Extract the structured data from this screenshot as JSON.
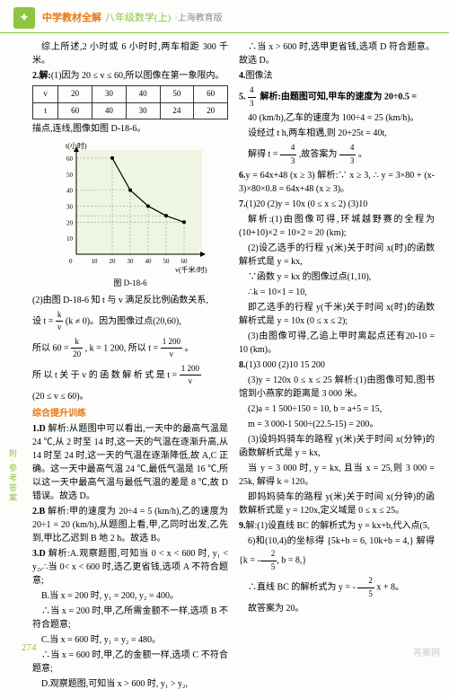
{
  "header": {
    "title": "中学教材全解",
    "subtitle": "八年级数学(上)",
    "edition": "·上海教育版"
  },
  "side_tab": "附·参考答案",
  "page_number": "274",
  "watermark": "答案网",
  "table1": {
    "headers": [
      "v",
      "20",
      "30",
      "40",
      "50",
      "60"
    ],
    "row": [
      "t",
      "60",
      "40",
      "30",
      "24",
      "20"
    ]
  },
  "chart": {
    "type": "line",
    "caption": "图 D-18-6",
    "ylabel": "t(小时)",
    "xlabel": "v(千米/时)",
    "xlim": [
      0,
      70
    ],
    "ylim": [
      0,
      65
    ],
    "xticks": [
      10,
      20,
      30,
      40,
      50,
      60
    ],
    "yticks": [
      10,
      20,
      30,
      40,
      50,
      60
    ],
    "points_x": [
      20,
      30,
      40,
      50,
      60
    ],
    "points_y": [
      60,
      40,
      30,
      24,
      20
    ],
    "line_color": "#000000",
    "point_color": "#000000",
    "grid_color": "#999999",
    "background": "#eef5e0",
    "axis_color": "#000000"
  },
  "left": {
    "p1": "综上所述,2 小时或 6 小时时,两车相距 300 千米。",
    "p2_label": "2.解:",
    "p2": "(1)因为 20 ≤ v ≤ 60,所以图像在第一象限内。",
    "p3": "描点,连线,图像如图 D-18-6。",
    "p4": "(2)由图 D-18-6 知 t 与 v 满足反比例函数关系,",
    "p5a": "设 t = ",
    "p5_frac_num": "k",
    "p5_frac_den": "v",
    "p5b": " (k ≠ 0)。因为图像过点(20,60),",
    "p6a": "所以 60 = ",
    "p6_frac_num": "k",
    "p6_frac_den": "20",
    "p6b": ", k = 1 200, 所以 t = ",
    "p6_frac2_num": "1 200",
    "p6_frac2_den": "v",
    "p6c": "。",
    "p7a": "所 以 t 关 于 v 的 函 数 解 析 式 是 t = ",
    "p7_frac_num": "1 200",
    "p7_frac_den": "v",
    "p8": "(20 ≤ v ≤ 60)。",
    "section": "综合提升训练",
    "q1_label": "1.D",
    "q1": "解析:从题图中可以看出,一天中的最高气温是 24 ℃,从 2 时至 14 时,这一天的气温在逐渐升高,从 14 时至 24 时,这一天的气温在逐渐降低,故 A,C 正确。这一天中最高气温 24 ℃,最低气温是 16 ℃,所以这一天中最高气温与最低气温的差是 8 ℃,故 D 错误。故选 D。",
    "q2_label": "2.B",
    "q2": "解析:甲的速度为 20÷4 = 5 (km/h),乙的速度为 20÷1 = 20 (km/h),从题图上看,甲,乙同时出发,乙先到,甲比乙迟到 B 地 2 h。故选 B。",
    "q3_label": "3.D",
    "q3": "解析:A.观察题图,可知当 0 < x < 600 时, y₁ < y₂,∴当 0< x < 600 时,选乙更省钱,选项 A 不符合题意;",
    "q3b": "B.当 x = 200 时, y₁ = 200, y₂ = 400。",
    "q3c": "∴当 x = 200 时,甲,乙所需金额不一样,选项 B 不符合题意;",
    "q3d": "C.当 x = 600 时, y₁ = y₂ = 480。",
    "q3e": "∴当 x = 600 时,甲,乙的金额一样,选项 C 不符合题意;",
    "q3f": "D.观察题图,可知当 x > 600 时, y₁ > y₂,"
  },
  "right": {
    "p1": "∴当 x > 600 时,选甲更省钱,选项 D 符合题意。故选 D。",
    "q4_label": "4.",
    "q4": "图像法",
    "q5_label": "5.",
    "q5_frac_num": "4",
    "q5_frac_den": "3",
    "q5a": "解析:由题图可知,甲车的速度为 20÷0.5 =",
    "q5b": "40 (km/h),乙车的速度为 100÷4 = 25 (km/h)。",
    "q5c": "设经过 t h,两车相遇,则 20+25t = 40t,",
    "q5d_a": "解得 t = ",
    "q5d_frac_num": "4",
    "q5d_frac_den": "3",
    "q5d_b": ",故答案为 ",
    "q5d_frac2_num": "4",
    "q5d_frac2_den": "3",
    "q5d_c": "。",
    "q6_label": "6.",
    "q6": "y = 64x+48 (x ≥ 3)  解析:∵ x ≥ 3, ∴ y = 3×80 + (x-3)×80×0.8 = 64x+48 (x ≥ 3)。",
    "q7_label": "7.",
    "q7": "(1)20  (2)y = 10x (0 ≤ x ≤ 2)  (3)10",
    "q7a": "解析:(1)由图像可得,环城越野赛的全程为(10+10)×2 = 10×2 = 20 (km);",
    "q7b": "(2)设乙选手的行程 y(米)关于时间 x(时)的函数解析式是 y = kx,",
    "q7c": "∵函数 y = kx 的图像过点(1,10),",
    "q7d": "∴k = 10×1 = 10,",
    "q7e": "即乙选手的行程 y(千米)关于时间 x(时)的函数解析式是 y = 10x (0 ≤ x ≤ 2);",
    "q7f": "(3)由图像可得,乙追上甲时离起点还有20-10 = 10 (km)。",
    "q8_label": "8.",
    "q8": "(1)3 000  (2)10  15  200",
    "q8a": "(3)y = 120x  0 ≤ x ≤ 25  解析:(1)由图像可知,图书馆到小燕家的距离是 3 000 米。",
    "q8b": "(2)a = 1 500÷150 = 10, b = a+5 = 15,",
    "q8c": "m = 3 000-1 500÷(22.5-15) = 200。",
    "q8d": "(3)设妈妈骑车的路程 y(米)关于时间 x(分钟)的函数解析式是 y = kx,",
    "q8e": "当 y = 3 000 时, y = kx, 且当 x = 25,则 3 000 = 25k, 解得 k = 120。",
    "q8f": "即妈妈骑车的路程 y(米)关于时间 x(分钟)的函数解析式是 y = 120x,定义域是 0 ≤ x ≤ 25。",
    "q9_label": "9.",
    "q9": "解:(1)设直线 BC 的解析式为 y = kx+b,代入点(5,",
    "q9a": "6)和(10,4)的坐标得",
    "q9_eq1": "5k+b = 6,",
    "q9_eq2": "10k+b = 4,",
    "q9_sol1_a": "k = -",
    "q9_sol1_frac_num": "2",
    "q9_sol1_frac_den": "5",
    "q9_sol1_b": ",",
    "q9_sol2": "b = 8,",
    "q9b_a": "∴直线 BC 的解析式为 y = -",
    "q9b_frac_num": "2",
    "q9b_frac_den": "5",
    "q9b_b": " x + 8。",
    "q9c": "故答案为 20。"
  }
}
